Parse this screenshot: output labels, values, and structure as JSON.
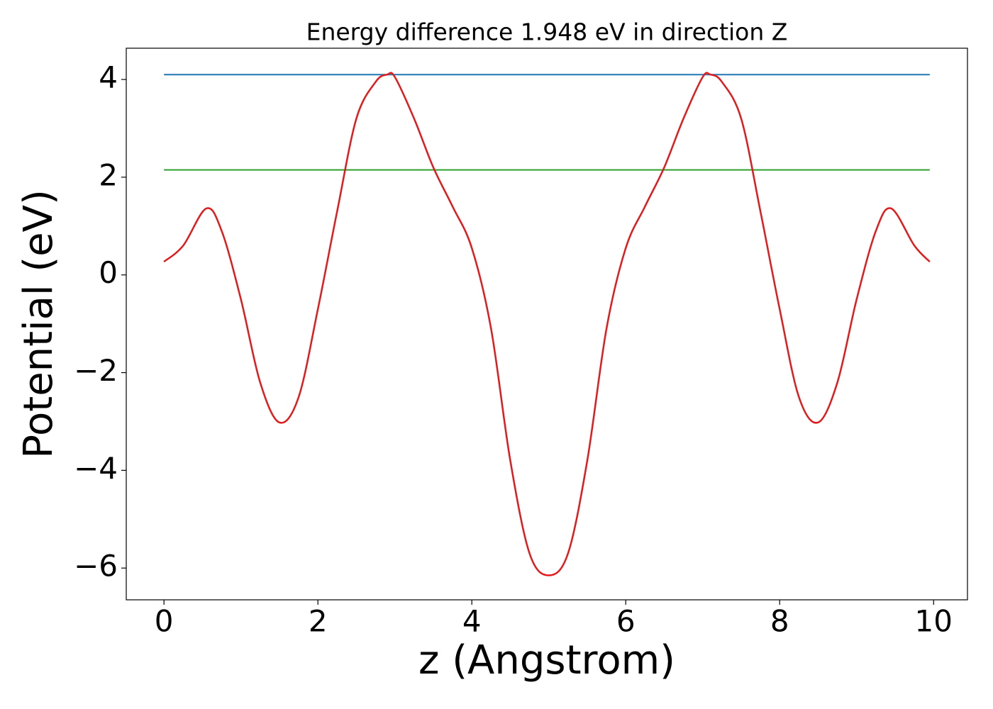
{
  "chart_data": {
    "type": "line",
    "title": "Energy difference 1.948 eV in direction Z",
    "xlabel": "z (Angstrom)",
    "ylabel": "Potential (eV)",
    "xlim": [
      -0.49,
      10.44
    ],
    "ylim": [
      -6.65,
      4.64
    ],
    "xticks": [
      0,
      2,
      4,
      6,
      8,
      10
    ],
    "yticks": [
      {
        "value": -6,
        "label": "−6"
      },
      {
        "value": -4,
        "label": "−4"
      },
      {
        "value": -2,
        "label": "−2"
      },
      0,
      2,
      4
    ],
    "series": [
      {
        "color": "#e31a1c",
        "x": [
          0,
          0.25,
          0.55,
          0.75,
          1.0,
          1.25,
          1.5,
          1.75,
          2.0,
          2.25,
          2.5,
          2.75,
          2.9,
          3.0,
          3.25,
          3.5,
          3.75,
          4.0,
          4.25,
          4.5,
          4.75,
          5.0,
          5.25,
          5.5,
          5.75,
          6.0,
          6.25,
          6.5,
          6.75,
          7.0,
          7.1,
          7.25,
          7.5,
          7.75,
          8.0,
          8.25,
          8.5,
          8.75,
          9.0,
          9.25,
          9.45,
          9.75,
          9.95
        ],
        "values": [
          0.27,
          0.6,
          1.36,
          0.9,
          -0.5,
          -2.2,
          -3.02,
          -2.5,
          -0.7,
          1.3,
          3.2,
          3.95,
          4.1,
          4.05,
          3.2,
          2.2,
          1.4,
          0.55,
          -1.1,
          -3.8,
          -5.7,
          -6.15,
          -5.7,
          -3.8,
          -1.1,
          0.55,
          1.4,
          2.2,
          3.2,
          4.05,
          4.1,
          3.95,
          3.2,
          1.3,
          -0.7,
          -2.5,
          -3.02,
          -2.2,
          -0.5,
          0.9,
          1.36,
          0.6,
          0.27
        ]
      },
      {
        "color": "#1f77b4",
        "x": [
          0,
          9.95
        ],
        "values": [
          4.1,
          4.1
        ]
      },
      {
        "color": "#2ca02c",
        "x": [
          0,
          9.95
        ],
        "values": [
          2.15,
          2.15
        ]
      }
    ]
  }
}
